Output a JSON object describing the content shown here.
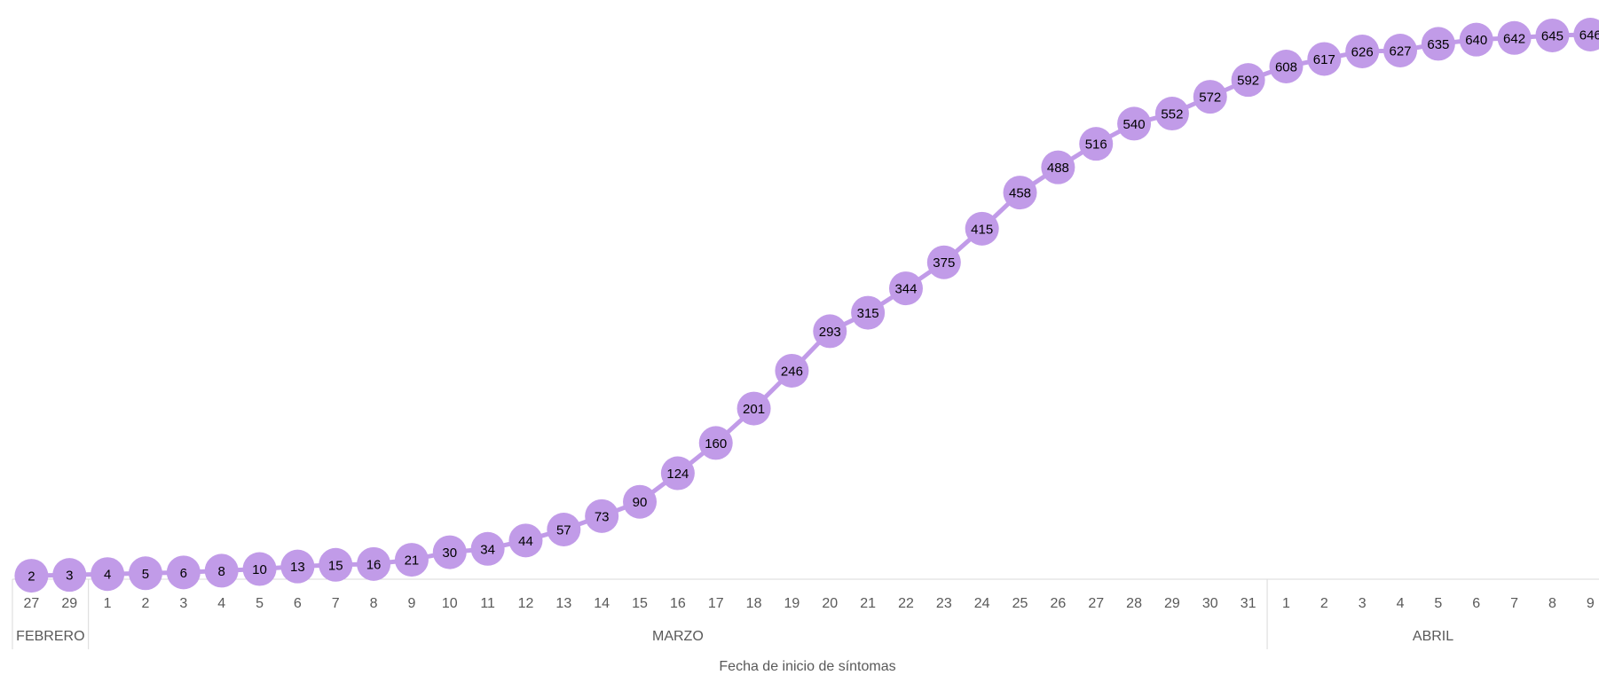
{
  "chart_data": {
    "type": "line",
    "title": "",
    "xlabel": "Fecha de inicio de síntomas",
    "ylabel": "",
    "ylim": [
      0,
      650
    ],
    "grid": false,
    "legend": "none",
    "x": [
      "27",
      "29",
      "1",
      "2",
      "3",
      "4",
      "5",
      "6",
      "7",
      "8",
      "9",
      "10",
      "11",
      "12",
      "13",
      "14",
      "15",
      "16",
      "17",
      "18",
      "19",
      "20",
      "21",
      "22",
      "23",
      "24",
      "25",
      "26",
      "27",
      "28",
      "29",
      "30",
      "31",
      "1",
      "2",
      "3",
      "4",
      "5",
      "6",
      "7",
      "8",
      "9"
    ],
    "values": [
      2,
      3,
      4,
      5,
      6,
      8,
      10,
      13,
      15,
      16,
      21,
      30,
      34,
      44,
      57,
      73,
      90,
      124,
      160,
      201,
      246,
      293,
      315,
      344,
      375,
      415,
      458,
      488,
      516,
      540,
      552,
      572,
      592,
      608,
      617,
      626,
      627,
      635,
      640,
      642,
      645,
      646
    ],
    "months": [
      {
        "name": "FEBRERO",
        "count": 2
      },
      {
        "name": "MARZO",
        "count": 31
      },
      {
        "name": "ABRIL",
        "count": 9
      }
    ],
    "colors": {
      "series": "#c19be8",
      "axis": "#d9d9d9",
      "text": "#595959",
      "value": "#000000"
    }
  }
}
